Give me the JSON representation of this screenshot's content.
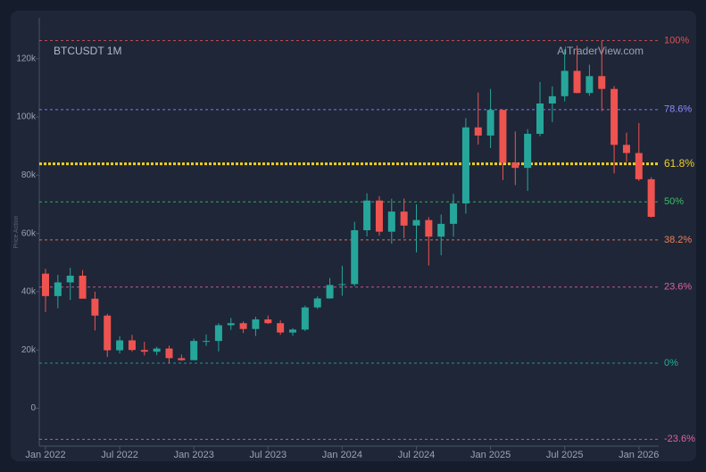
{
  "chart_data": {
    "type": "candlestick",
    "title": "BTCUSDT 1M",
    "watermark": "AiTraderView.com",
    "y_label": "Price Action",
    "categories": [
      "Jan 2022",
      null,
      null,
      null,
      null,
      null,
      "Jul 2022",
      null,
      null,
      null,
      null,
      null,
      "Jan 2023",
      null,
      null,
      null,
      null,
      null,
      "Jul 2023",
      null,
      null,
      null,
      null,
      null,
      "Jan 2024",
      null,
      null,
      null,
      null,
      null,
      "Jul 2024",
      null,
      null,
      null,
      null,
      null,
      "Jan 2025",
      null,
      null,
      null,
      null,
      null,
      "Jul 2025",
      null,
      null,
      null,
      null,
      null,
      "Jan 2026",
      null
    ],
    "open": [
      46200,
      38500,
      43200,
      45500,
      37600,
      31800,
      19900,
      23300,
      20000,
      19400,
      20500,
      17200,
      16500,
      23100,
      23100,
      28500,
      29200,
      27200,
      30500,
      29200,
      26000,
      27000,
      34600,
      37700,
      42300,
      42600,
      61100,
      71300,
      60600,
      67500,
      62700,
      64600,
      58900,
      63300,
      70300,
      96400,
      93600,
      102400,
      84300,
      82500,
      94200,
      104600,
      107100,
      115800,
      108200,
      114000,
      109600,
      90400,
      87600,
      78600
    ],
    "high": [
      47900,
      45800,
      48200,
      47400,
      40000,
      32400,
      24700,
      25200,
      22800,
      21100,
      21500,
      18400,
      23900,
      25300,
      29200,
      31000,
      29800,
      31400,
      31800,
      30200,
      27500,
      35200,
      38400,
      44700,
      48900,
      64000,
      73800,
      72800,
      71900,
      72000,
      70000,
      65600,
      66500,
      73600,
      99600,
      108400,
      109600,
      102500,
      95000,
      95800,
      112000,
      110500,
      123200,
      124500,
      117900,
      126200,
      110600,
      94600,
      97900,
      79300
    ],
    "low": [
      33000,
      34300,
      37200,
      37700,
      26700,
      17600,
      18800,
      19500,
      18100,
      18200,
      15500,
      16300,
      16500,
      21400,
      19500,
      26900,
      25800,
      24800,
      28900,
      25200,
      24900,
      26500,
      34100,
      37600,
      38600,
      41900,
      59000,
      59200,
      56500,
      58400,
      53500,
      49000,
      52500,
      58900,
      66800,
      90500,
      89300,
      78300,
      76600,
      74600,
      93400,
      98200,
      105300,
      108100,
      107300,
      102000,
      80600,
      84500,
      78000,
      65500
    ],
    "close": [
      38500,
      43200,
      45500,
      37600,
      31800,
      19900,
      23300,
      20000,
      19400,
      20500,
      17200,
      16500,
      23100,
      23100,
      28500,
      29200,
      27200,
      30500,
      29200,
      26000,
      27000,
      34600,
      37700,
      42300,
      42600,
      61100,
      71300,
      60600,
      67500,
      62700,
      64600,
      58900,
      63300,
      70300,
      96400,
      93600,
      102400,
      84300,
      82500,
      94200,
      104600,
      107100,
      115800,
      108200,
      114000,
      109600,
      90400,
      87600,
      78600,
      65700
    ],
    "up_color": "#26a69a",
    "down_color": "#ef5350",
    "ylim": [
      -13000,
      134000
    ],
    "yticks": [
      {
        "value": 0,
        "label": "0"
      },
      {
        "value": 20000,
        "label": "20k"
      },
      {
        "value": 40000,
        "label": "40k"
      },
      {
        "value": 60000,
        "label": "60k"
      },
      {
        "value": 80000,
        "label": "80k"
      },
      {
        "value": 100000,
        "label": "100k"
      },
      {
        "value": 120000,
        "label": "120k"
      }
    ],
    "levels": [
      {
        "value": 126200,
        "label": "100%",
        "color": "#e05050"
      },
      {
        "value": 102505,
        "label": "78.6%",
        "color": "#8c8cff"
      },
      {
        "value": 83903,
        "label": "61.8%",
        "color": "#f0d020"
      },
      {
        "value": 70838,
        "label": "50%",
        "color": "#3cc060"
      },
      {
        "value": 57773,
        "label": "38.2%",
        "color": "#f08050"
      },
      {
        "value": 41607,
        "label": "23.6%",
        "color": "#e060a0"
      },
      {
        "value": 15476,
        "label": "0%",
        "color": "#20b090"
      },
      {
        "value": -10655,
        "label": "-23.6%",
        "color": "#e060a0"
      }
    ],
    "highlight_level": "61.8%"
  }
}
